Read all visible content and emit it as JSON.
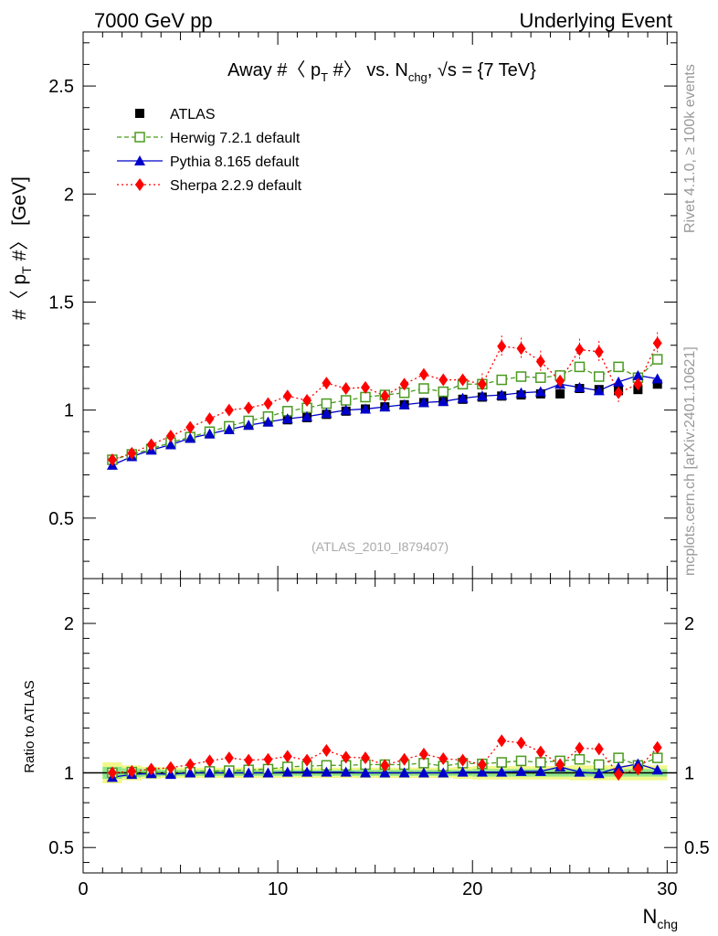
{
  "header": {
    "left": "7000 GeV pp",
    "right": "Underlying Event"
  },
  "side": {
    "rivet": "Rivet 4.1.0, ≥ 100k events",
    "mcplots": "mcplots.cern.ch [arXiv:2401.10621]"
  },
  "chart_data": [
    {
      "type": "scatter",
      "title": "Away #〈 p_T #〉 vs. N_chg, √s = {7 TeV}",
      "title_parts": {
        "pre": "Away #〈 p",
        "sub1": "T",
        "mid": " #〉 vs. N",
        "sub2": "chg",
        "post": ", √s = {7 TeV}"
      },
      "ylabel": "#〈 p_T #〉 [GeV]",
      "ylabel_parts": {
        "pre": "#〈 p",
        "sub": "T",
        "post": " #〉 [GeV]"
      },
      "watermark": "(ATLAS_2010_I879407)",
      "xlim": [
        0,
        30.5
      ],
      "ylim": [
        0.22,
        2.75
      ],
      "yticks": [
        0.5,
        1,
        1.5,
        2,
        2.5
      ],
      "ytick_labels": [
        "0.5",
        "1",
        "1.5",
        "2",
        "2.5"
      ],
      "legend": [
        {
          "key": "atlas",
          "label": "ATLAS",
          "color": "#000000"
        },
        {
          "key": "herwig",
          "label": "Herwig 7.2.1 default",
          "color": "#4a9a1f"
        },
        {
          "key": "pythia",
          "label": "Pythia 8.165 default",
          "color": "#0000cc"
        },
        {
          "key": "sherpa",
          "label": "Sherpa 2.2.9 default",
          "color": "#ff0000"
        }
      ],
      "x": [
        1.5,
        2.5,
        3.5,
        4.5,
        5.5,
        6.5,
        7.5,
        8.5,
        9.5,
        10.5,
        11.5,
        12.5,
        13.5,
        14.5,
        15.5,
        16.5,
        17.5,
        18.5,
        19.5,
        20.5,
        21.5,
        22.5,
        23.5,
        24.5,
        25.5,
        26.5,
        27.5,
        28.5,
        29.5
      ],
      "series": [
        {
          "name": "ATLAS",
          "values": [
            0.77,
            0.79,
            0.82,
            0.85,
            0.87,
            0.89,
            0.91,
            0.93,
            0.945,
            0.955,
            0.965,
            0.98,
            0.995,
            1.005,
            1.015,
            1.025,
            1.035,
            1.04,
            1.05,
            1.06,
            1.065,
            1.07,
            1.075,
            1.075,
            1.1,
            1.095,
            1.09,
            1.095,
            1.12
          ]
        },
        {
          "name": "Herwig 7.2.1 default",
          "values": [
            0.77,
            0.795,
            0.82,
            0.85,
            0.875,
            0.9,
            0.925,
            0.95,
            0.97,
            0.995,
            1.01,
            1.03,
            1.045,
            1.06,
            1.07,
            1.08,
            1.1,
            1.085,
            1.12,
            1.12,
            1.14,
            1.155,
            1.15,
            1.16,
            1.2,
            1.155,
            1.2,
            1.15,
            1.235
          ]
        },
        {
          "name": "Pythia 8.165 default",
          "values": [
            0.745,
            0.785,
            0.815,
            0.84,
            0.87,
            0.89,
            0.91,
            0.93,
            0.945,
            0.96,
            0.97,
            0.985,
            1.0,
            1.005,
            1.015,
            1.025,
            1.035,
            1.04,
            1.055,
            1.065,
            1.07,
            1.08,
            1.085,
            1.12,
            1.105,
            1.09,
            1.13,
            1.16,
            1.145
          ]
        },
        {
          "name": "Sherpa 2.2.9 default",
          "values": [
            0.77,
            0.8,
            0.84,
            0.88,
            0.92,
            0.96,
            1.0,
            1.01,
            1.03,
            1.065,
            1.045,
            1.125,
            1.1,
            1.105,
            1.065,
            1.12,
            1.165,
            1.14,
            1.14,
            1.12,
            1.295,
            1.285,
            1.225,
            1.135,
            1.28,
            1.27,
            1.08,
            1.12,
            1.31
          ]
        }
      ]
    },
    {
      "type": "scatter",
      "ylabel": "Ratio to ATLAS",
      "xlabel": "N_chg",
      "xlabel_parts": {
        "pre": "N",
        "sub": "chg"
      },
      "xlim": [
        0,
        30.5
      ],
      "ylim": [
        0.33,
        2.3
      ],
      "xticks": [
        0,
        10,
        20,
        30
      ],
      "xtick_labels": [
        "0",
        "10",
        "20",
        "30"
      ],
      "yticks": [
        0.5,
        1,
        2
      ],
      "ytick_labels": [
        "0.5",
        "1",
        "2"
      ],
      "band_inner": [
        0.04,
        0.03,
        0.025,
        0.02,
        0.02,
        0.02,
        0.02,
        0.02,
        0.02,
        0.02,
        0.02,
        0.02,
        0.02,
        0.02,
        0.02,
        0.02,
        0.02,
        0.02,
        0.02,
        0.025,
        0.025,
        0.025,
        0.025,
        0.025,
        0.025,
        0.025,
        0.025,
        0.025,
        0.025
      ],
      "band_outer": [
        0.07,
        0.05,
        0.04,
        0.035,
        0.035,
        0.035,
        0.035,
        0.035,
        0.035,
        0.035,
        0.035,
        0.035,
        0.035,
        0.035,
        0.035,
        0.035,
        0.035,
        0.035,
        0.04,
        0.045,
        0.045,
        0.045,
        0.045,
        0.045,
        0.05,
        0.05,
        0.05,
        0.05,
        0.05
      ],
      "series": [
        {
          "name": "Herwig 7.2.1 default",
          "values": [
            1.0,
            1.005,
            1.0,
            1.0,
            1.005,
            1.01,
            1.015,
            1.02,
            1.025,
            1.04,
            1.045,
            1.05,
            1.05,
            1.055,
            1.055,
            1.055,
            1.065,
            1.045,
            1.065,
            1.06,
            1.07,
            1.08,
            1.07,
            1.08,
            1.09,
            1.055,
            1.1,
            1.05,
            1.1
          ]
        },
        {
          "name": "Pythia 8.165 default",
          "values": [
            0.97,
            0.99,
            0.995,
            0.99,
            1.0,
            1.0,
            1.0,
            1.0,
            1.0,
            1.005,
            1.005,
            1.005,
            1.005,
            1.0,
            1.0,
            1.0,
            1.0,
            1.0,
            1.005,
            1.005,
            1.005,
            1.01,
            1.01,
            1.04,
            1.005,
            0.995,
            1.035,
            1.06,
            1.02
          ]
        },
        {
          "name": "Sherpa 2.2.9 default",
          "values": [
            1.0,
            1.01,
            1.025,
            1.035,
            1.055,
            1.08,
            1.1,
            1.085,
            1.09,
            1.11,
            1.085,
            1.15,
            1.105,
            1.1,
            1.05,
            1.09,
            1.125,
            1.095,
            1.085,
            1.055,
            1.215,
            1.2,
            1.14,
            1.055,
            1.165,
            1.16,
            0.99,
            1.025,
            1.17
          ]
        }
      ]
    }
  ]
}
